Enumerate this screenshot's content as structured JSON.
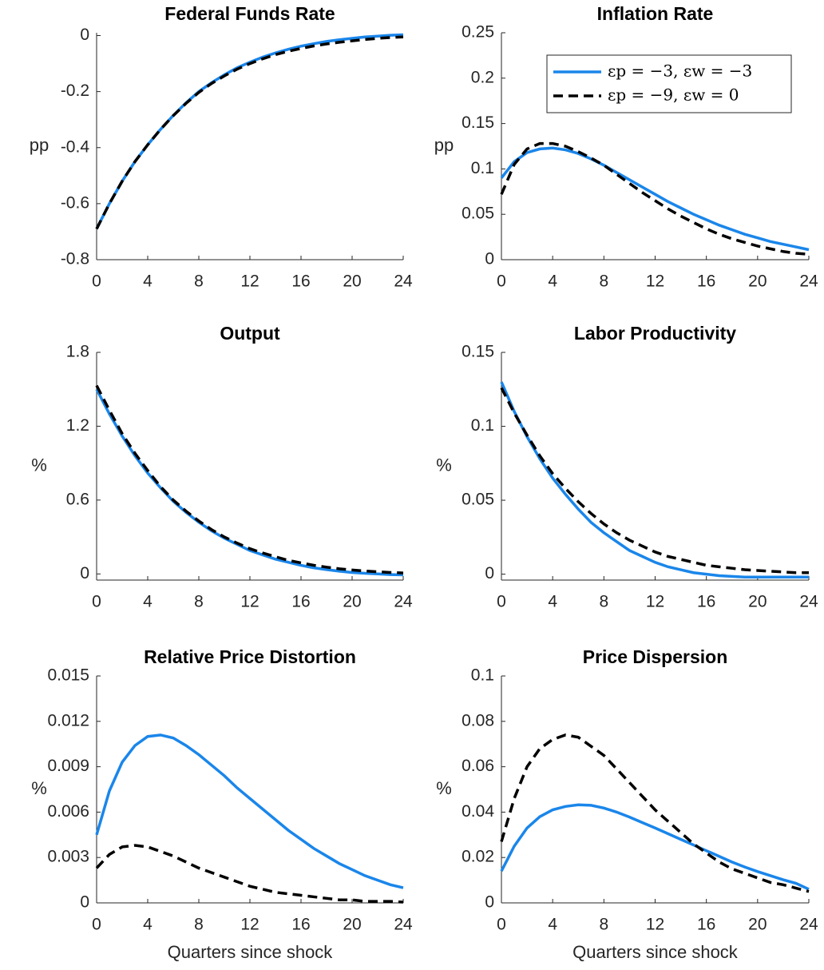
{
  "chart_data": [
    {
      "type": "line",
      "title": "Federal Funds Rate",
      "ylabel": "pp",
      "x": [
        0,
        1,
        2,
        3,
        4,
        5,
        6,
        7,
        8,
        9,
        10,
        11,
        12,
        13,
        14,
        15,
        16,
        17,
        18,
        19,
        20,
        21,
        22,
        23,
        24
      ],
      "xlim": [
        0,
        24
      ],
      "xticks": [
        0,
        4,
        8,
        12,
        16,
        20,
        24
      ],
      "ylim": [
        -0.8,
        0.01
      ],
      "yticks": [
        -0.8,
        -0.6,
        -0.4,
        -0.2,
        0
      ],
      "series": [
        {
          "color": "#1a86ea",
          "linestyle": "solid",
          "values": [
            -0.69,
            -0.6,
            -0.52,
            -0.45,
            -0.39,
            -0.335,
            -0.285,
            -0.24,
            -0.2,
            -0.168,
            -0.14,
            -0.115,
            -0.095,
            -0.077,
            -0.062,
            -0.049,
            -0.038,
            -0.029,
            -0.021,
            -0.015,
            -0.01,
            -0.005,
            -0.002,
            0.001,
            0.003
          ]
        },
        {
          "color": "#000000",
          "linestyle": "dashed",
          "values": [
            -0.69,
            -0.6,
            -0.52,
            -0.45,
            -0.39,
            -0.335,
            -0.286,
            -0.242,
            -0.203,
            -0.171,
            -0.144,
            -0.12,
            -0.1,
            -0.083,
            -0.068,
            -0.056,
            -0.046,
            -0.037,
            -0.03,
            -0.024,
            -0.019,
            -0.014,
            -0.01,
            -0.007,
            -0.005
          ]
        }
      ]
    },
    {
      "type": "line",
      "title": "Inflation Rate",
      "ylabel": "pp",
      "legend": "northeast",
      "x": [
        0,
        1,
        2,
        3,
        4,
        5,
        6,
        7,
        8,
        9,
        10,
        11,
        12,
        13,
        14,
        15,
        16,
        17,
        18,
        19,
        20,
        21,
        22,
        23,
        24
      ],
      "xlim": [
        0,
        24
      ],
      "xticks": [
        0,
        4,
        8,
        12,
        16,
        20,
        24
      ],
      "ylim": [
        0,
        0.25
      ],
      "yticks": [
        0,
        0.05,
        0.1,
        0.15,
        0.2,
        0.25
      ],
      "series": [
        {
          "name": "εp = −3, εw = −3",
          "color": "#1a86ea",
          "linestyle": "solid",
          "values": [
            0.09,
            0.108,
            0.118,
            0.122,
            0.123,
            0.121,
            0.117,
            0.111,
            0.104,
            0.096,
            0.088,
            0.08,
            0.072,
            0.064,
            0.057,
            0.05,
            0.044,
            0.038,
            0.033,
            0.028,
            0.024,
            0.02,
            0.017,
            0.014,
            0.011
          ]
        },
        {
          "name": "εp = −9, εw = 0",
          "color": "#000000",
          "linestyle": "dashed",
          "values": [
            0.072,
            0.105,
            0.122,
            0.128,
            0.128,
            0.125,
            0.119,
            0.112,
            0.104,
            0.094,
            0.084,
            0.074,
            0.065,
            0.056,
            0.048,
            0.041,
            0.034,
            0.028,
            0.023,
            0.019,
            0.015,
            0.012,
            0.009,
            0.007,
            0.006
          ]
        }
      ]
    },
    {
      "type": "line",
      "title": "Output",
      "ylabel": "%",
      "x": [
        0,
        1,
        2,
        3,
        4,
        5,
        6,
        7,
        8,
        9,
        10,
        11,
        12,
        13,
        14,
        15,
        16,
        17,
        18,
        19,
        20,
        21,
        22,
        23,
        24
      ],
      "xlim": [
        0,
        24
      ],
      "xticks": [
        0,
        4,
        8,
        12,
        16,
        20,
        24
      ],
      "ylim": [
        -0.05,
        1.8
      ],
      "yticks": [
        0,
        0.6,
        1.2,
        1.8
      ],
      "series": [
        {
          "color": "#1a86ea",
          "linestyle": "solid",
          "values": [
            1.5,
            1.3,
            1.12,
            0.96,
            0.82,
            0.7,
            0.59,
            0.5,
            0.42,
            0.35,
            0.29,
            0.24,
            0.19,
            0.155,
            0.12,
            0.095,
            0.07,
            0.05,
            0.035,
            0.022,
            0.012,
            0.005,
            0,
            -0.005,
            -0.008
          ]
        },
        {
          "color": "#000000",
          "linestyle": "dashed",
          "values": [
            1.53,
            1.33,
            1.14,
            0.98,
            0.84,
            0.71,
            0.6,
            0.51,
            0.43,
            0.36,
            0.3,
            0.25,
            0.205,
            0.17,
            0.14,
            0.11,
            0.09,
            0.07,
            0.055,
            0.042,
            0.032,
            0.024,
            0.017,
            0.012,
            0.008
          ]
        }
      ]
    },
    {
      "type": "line",
      "title": "Labor Productivity",
      "ylabel": "%",
      "x": [
        0,
        1,
        2,
        3,
        4,
        5,
        6,
        7,
        8,
        9,
        10,
        11,
        12,
        13,
        14,
        15,
        16,
        17,
        18,
        19,
        20,
        21,
        22,
        23,
        24
      ],
      "xlim": [
        0,
        24
      ],
      "xticks": [
        0,
        4,
        8,
        12,
        16,
        20,
        24
      ],
      "ylim": [
        -0.004,
        0.15
      ],
      "yticks": [
        0,
        0.05,
        0.1,
        0.15
      ],
      "series": [
        {
          "color": "#1a86ea",
          "linestyle": "solid",
          "values": [
            0.13,
            0.11,
            0.093,
            0.078,
            0.065,
            0.054,
            0.044,
            0.035,
            0.028,
            0.022,
            0.016,
            0.012,
            0.008,
            0.005,
            0.003,
            0.001,
            0,
            -0.001,
            -0.0015,
            -0.002,
            -0.002,
            -0.002,
            -0.002,
            -0.002,
            -0.002
          ]
        },
        {
          "color": "#000000",
          "linestyle": "dashed",
          "values": [
            0.126,
            0.109,
            0.094,
            0.08,
            0.068,
            0.058,
            0.049,
            0.041,
            0.034,
            0.028,
            0.023,
            0.019,
            0.015,
            0.012,
            0.01,
            0.008,
            0.006,
            0.005,
            0.004,
            0.003,
            0.0025,
            0.002,
            0.0015,
            0.001,
            0.001
          ]
        }
      ]
    },
    {
      "type": "line",
      "title": "Relative Price Distortion",
      "ylabel": "%",
      "xlabel": "Quarters since shock",
      "x": [
        0,
        1,
        2,
        3,
        4,
        5,
        6,
        7,
        8,
        9,
        10,
        11,
        12,
        13,
        14,
        15,
        16,
        17,
        18,
        19,
        20,
        21,
        22,
        23,
        24
      ],
      "xlim": [
        0,
        24
      ],
      "xticks": [
        0,
        4,
        8,
        12,
        16,
        20,
        24
      ],
      "ylim": [
        0,
        0.015
      ],
      "yticks": [
        0,
        0.003,
        0.006,
        0.009,
        0.012,
        0.015
      ],
      "series": [
        {
          "color": "#1a86ea",
          "linestyle": "solid",
          "values": [
            0.0045,
            0.0074,
            0.0093,
            0.0104,
            0.011,
            0.0111,
            0.0109,
            0.0104,
            0.0098,
            0.0091,
            0.0084,
            0.0076,
            0.0069,
            0.0062,
            0.0055,
            0.0048,
            0.0042,
            0.0036,
            0.0031,
            0.0026,
            0.0022,
            0.0018,
            0.0015,
            0.0012,
            0.001
          ]
        },
        {
          "color": "#000000",
          "linestyle": "dashed",
          "values": [
            0.0023,
            0.0032,
            0.0037,
            0.0038,
            0.0037,
            0.0034,
            0.0031,
            0.0027,
            0.0023,
            0.002,
            0.0017,
            0.0014,
            0.0011,
            0.0009,
            0.0007,
            0.0006,
            0.0005,
            0.0004,
            0.0003,
            0.0002,
            0.0002,
            0.0001,
            0.0001,
            0.0001,
            5e-05
          ]
        }
      ]
    },
    {
      "type": "line",
      "title": "Price Dispersion",
      "ylabel": "%",
      "xlabel": "Quarters since shock",
      "x": [
        0,
        1,
        2,
        3,
        4,
        5,
        6,
        7,
        8,
        9,
        10,
        11,
        12,
        13,
        14,
        15,
        16,
        17,
        18,
        19,
        20,
        21,
        22,
        23,
        24
      ],
      "xlim": [
        0,
        24
      ],
      "xticks": [
        0,
        4,
        8,
        12,
        16,
        20,
        24
      ],
      "ylim": [
        0,
        0.1
      ],
      "yticks": [
        0,
        0.02,
        0.04,
        0.06,
        0.08,
        0.1
      ],
      "series": [
        {
          "color": "#1a86ea",
          "linestyle": "solid",
          "values": [
            0.014,
            0.025,
            0.033,
            0.038,
            0.041,
            0.0425,
            0.0432,
            0.043,
            0.0418,
            0.04,
            0.0378,
            0.0354,
            0.033,
            0.0305,
            0.028,
            0.0255,
            0.023,
            0.0205,
            0.018,
            0.0158,
            0.0138,
            0.012,
            0.0102,
            0.0086,
            0.006
          ]
        },
        {
          "color": "#000000",
          "linestyle": "dashed",
          "values": [
            0.027,
            0.046,
            0.06,
            0.068,
            0.072,
            0.074,
            0.073,
            0.069,
            0.065,
            0.059,
            0.053,
            0.047,
            0.041,
            0.036,
            0.031,
            0.026,
            0.022,
            0.018,
            0.015,
            0.013,
            0.011,
            0.009,
            0.008,
            0.0065,
            0.005
          ]
        }
      ]
    }
  ]
}
